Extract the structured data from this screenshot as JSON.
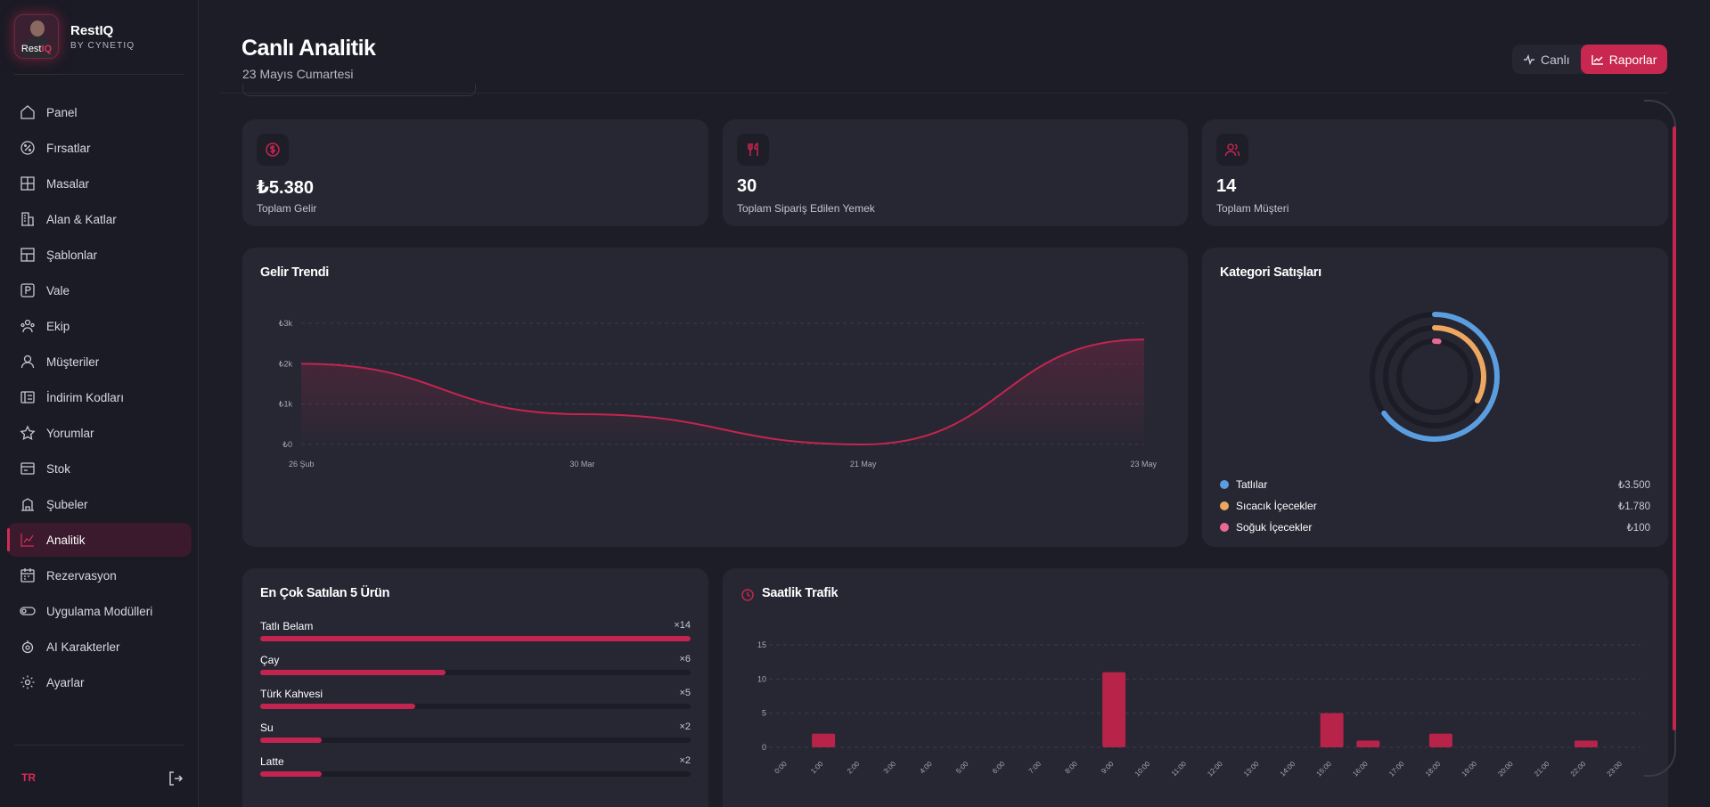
{
  "brand": {
    "name": "RestIQ",
    "sub": "BY CYNETIQ",
    "logo_word_a": "Rest",
    "logo_word_b": "IQ"
  },
  "sidebar": {
    "items": [
      {
        "label": "Panel",
        "icon": "home-icon",
        "active": false
      },
      {
        "label": "Fırsatlar",
        "icon": "badge-percent-icon",
        "active": false
      },
      {
        "label": "Masalar",
        "icon": "table-grid-icon",
        "active": false
      },
      {
        "label": "Alan & Katlar",
        "icon": "building-icon",
        "active": false
      },
      {
        "label": "Şablonlar",
        "icon": "layout-icon",
        "active": false
      },
      {
        "label": "Vale",
        "icon": "parking-icon",
        "active": false
      },
      {
        "label": "Ekip",
        "icon": "team-icon",
        "active": false
      },
      {
        "label": "Müşteriler",
        "icon": "user-icon",
        "active": false
      },
      {
        "label": "İndirim Kodları",
        "icon": "ticket-icon",
        "active": false
      },
      {
        "label": "Yorumlar",
        "icon": "star-icon",
        "active": false
      },
      {
        "label": "Stok",
        "icon": "stock-icon",
        "active": false
      },
      {
        "label": "Şubeler",
        "icon": "branch-icon",
        "active": false
      },
      {
        "label": "Analitik",
        "icon": "chart-icon",
        "active": true
      },
      {
        "label": "Rezervasyon",
        "icon": "calendar-icon",
        "active": false
      },
      {
        "label": "Uygulama Modülleri",
        "icon": "toggle-icon",
        "active": false
      },
      {
        "label": "AI Karakterler",
        "icon": "bot-icon",
        "active": false
      },
      {
        "label": "Ayarlar",
        "icon": "gear-icon",
        "active": false
      }
    ],
    "lang": "TR"
  },
  "header": {
    "title": "Canlı Analitik",
    "date": "23 Mayıs Cumartesi",
    "toggle_live": "Canlı",
    "toggle_reports": "Raporlar"
  },
  "stats": [
    {
      "value": "₺5.380",
      "label": "Toplam Gelir",
      "icon": "coin-icon"
    },
    {
      "value": "30",
      "label": "Toplam Sipariş Edilen Yemek",
      "icon": "utensils-icon"
    },
    {
      "value": "14",
      "label": "Toplam Müşteri",
      "icon": "users-icon"
    }
  ],
  "revenue": {
    "title": "Gelir Trendi"
  },
  "category": {
    "title": "Kategori Satışları",
    "items": [
      {
        "name": "Tatlılar",
        "value": "₺3.500",
        "color": "#5b9ee0"
      },
      {
        "name": "Sıcacık İçecekler",
        "value": "₺1.780",
        "color": "#eda760"
      },
      {
        "name": "Soğuk İçecekler",
        "value": "₺100",
        "color": "#e86a94"
      }
    ]
  },
  "top_products": {
    "title": "En Çok Satılan 5 Ürün",
    "items": [
      {
        "name": "Tatlı Belam",
        "count": "×14",
        "ratio": 1.0
      },
      {
        "name": "Çay",
        "count": "×6",
        "ratio": 0.43
      },
      {
        "name": "Türk Kahvesi",
        "count": "×5",
        "ratio": 0.36
      },
      {
        "name": "Su",
        "count": "×2",
        "ratio": 0.143
      },
      {
        "name": "Latte",
        "count": "×2",
        "ratio": 0.143
      }
    ]
  },
  "hourly": {
    "title": "Saatlik Trafik"
  },
  "chart_data": [
    {
      "type": "area",
      "title": "Gelir Trendi",
      "x": [
        "26 Şub",
        "30 Mar",
        "21 May",
        "23 May"
      ],
      "series": [
        {
          "values": [
            2000,
            750,
            0,
            2600
          ]
        }
      ],
      "yticks": [
        "₺0",
        "₺1k",
        "₺2k",
        "₺3k"
      ],
      "ylim": [
        0,
        3000
      ],
      "grid": true,
      "color": "#c42550"
    },
    {
      "type": "pie",
      "title": "Kategori Satışları",
      "categories": [
        "Tatlılar",
        "Sıcacık İçecekler",
        "Soğuk İçecekler"
      ],
      "values": [
        3500,
        1780,
        100
      ],
      "colors": [
        "#5b9ee0",
        "#eda760",
        "#e86a94"
      ]
    },
    {
      "type": "bar",
      "title": "Saatlik Trafik",
      "categories": [
        "0:00",
        "1:00",
        "2:00",
        "3:00",
        "4:00",
        "5:00",
        "6:00",
        "7:00",
        "8:00",
        "9:00",
        "10:00",
        "11:00",
        "12:00",
        "13:00",
        "14:00",
        "15:00",
        "16:00",
        "17:00",
        "18:00",
        "19:00",
        "20:00",
        "21:00",
        "22:00",
        "23:00"
      ],
      "values": [
        0,
        2,
        0,
        0,
        0,
        0,
        0,
        0,
        0,
        11,
        0,
        0,
        0,
        0,
        0,
        5,
        1,
        0,
        2,
        0,
        0,
        0,
        1,
        0
      ],
      "yticks": [
        "0",
        "5",
        "10",
        "15"
      ],
      "ylim": [
        0,
        15
      ],
      "grid": true,
      "color": "#b8234a"
    }
  ]
}
